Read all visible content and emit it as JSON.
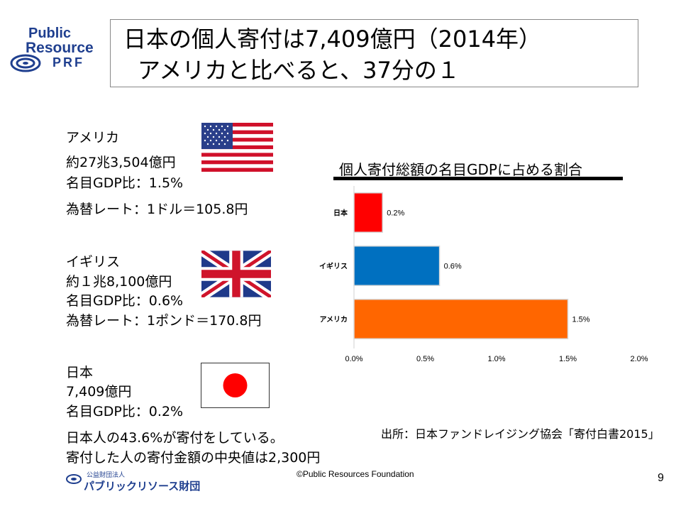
{
  "logo": {
    "line1": "Public",
    "line2": "Resource",
    "line3": "PRF"
  },
  "title": {
    "line1": "日本の個人寄付は7,409億円（2014年）",
    "line2": "アメリカと比べると、37分の１"
  },
  "usa": {
    "name": "アメリカ",
    "amount": "約27兆3,504億円",
    "gdp": "名目GDP比：1.5%",
    "rate": "為替レート：1ドル＝105.8円"
  },
  "uk": {
    "name": "イギリス",
    "amount": "約１兆8,100億円",
    "gdp": "名目GDP比：0.6%",
    "rate": "為替レート：1ポンド＝170.8円"
  },
  "japan": {
    "name": "日本",
    "amount": "7,409億円",
    "gdp": "名目GDP比：0.2%",
    "note1": "日本人の43.6%が寄付をしている。",
    "note2": "寄付した人の寄付金額の中央値は2,300円"
  },
  "chart_data": {
    "type": "bar",
    "orientation": "horizontal",
    "title": "個人寄付総額の名目GDPに占める割合",
    "categories": [
      "日本",
      "イギリス",
      "アメリカ"
    ],
    "values": [
      0.2,
      0.6,
      1.5
    ],
    "value_labels": [
      "0.2%",
      "0.6%",
      "1.5%"
    ],
    "colors": [
      "#ff0000",
      "#0070c0",
      "#ff6600"
    ],
    "xlim": [
      0,
      2.0
    ],
    "ticks": [
      "0.0%",
      "0.5%",
      "1.0%",
      "1.5%",
      "2.0%"
    ],
    "tick_values": [
      0,
      0.5,
      1.0,
      1.5,
      2.0
    ],
    "grid": false
  },
  "source": "出所：日本ファンドレイジング協会「寄付白書2015」",
  "footer": {
    "copyright": "©Public Resources Foundation",
    "page": "9",
    "org_small": "公益財団法人",
    "org_name": "パブリックリソース財団"
  }
}
